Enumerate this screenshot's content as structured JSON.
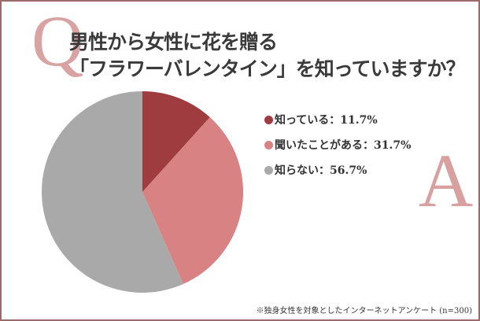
{
  "question_mark": "Q",
  "answer_mark": "A",
  "title_line1": "男性から女性に花を贈る",
  "title_line2": "「フラワーバレンタイン」を知っていますか？",
  "footnote": "※独身女性を対象としたインターネットアンケート (n=300)",
  "chart_data": {
    "type": "pie",
    "start": "top",
    "direction": "clockwise",
    "legend_position": "right",
    "slices": [
      {
        "label": "知っている",
        "value": 11.7,
        "color": "#9e3c40",
        "legend_text": "知っている：11.7%"
      },
      {
        "label": "聞いたことがある",
        "value": 31.7,
        "color": "#d98284",
        "legend_text": "聞いたことがある：31.7%"
      },
      {
        "label": "知らない",
        "value": 56.7,
        "color": "#a9a9a9",
        "legend_text": "知らない：56.7%"
      }
    ]
  }
}
